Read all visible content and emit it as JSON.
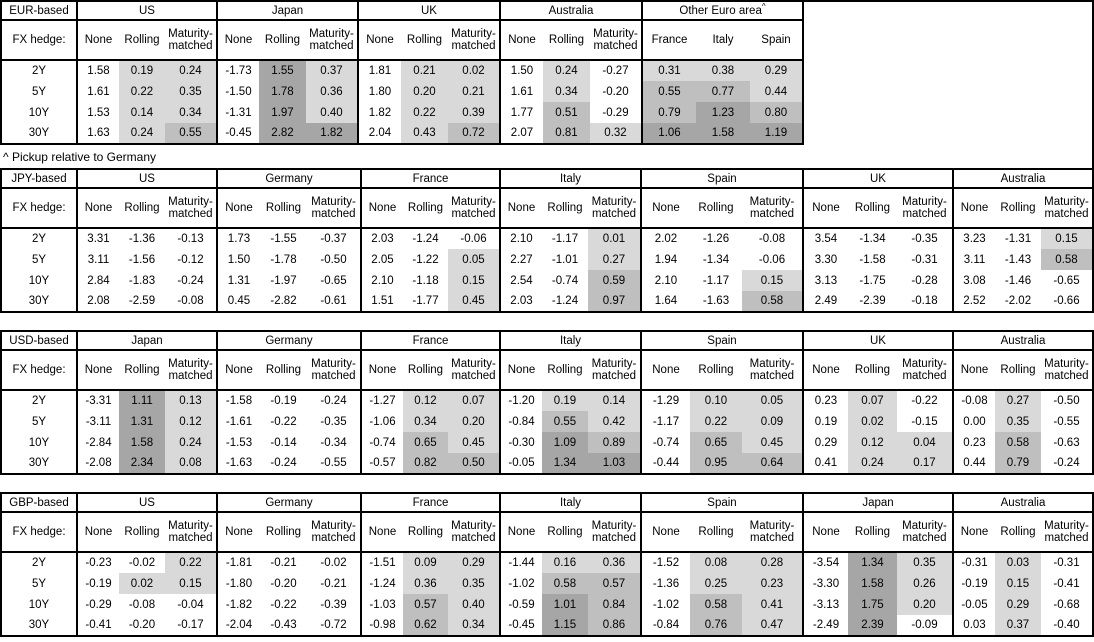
{
  "note": "^ Pickup relative to Germany",
  "colors": {
    "cell_light": "#d9d9d9",
    "cell_medium": "#bfbfbf",
    "cell_dark": "#a6a6a6",
    "border": "#000000"
  },
  "shading_rule": {
    "description": "hedged columns shaded by value",
    "thresholds": [
      0,
      0.5,
      1.0
    ]
  },
  "tables": [
    {
      "base_label": "EUR-based",
      "fx_hedge_label": "FX hedge:",
      "tenors": [
        "2Y",
        "5Y",
        "10Y",
        "30Y"
      ],
      "groups": [
        {
          "name": "US",
          "cols": [
            "None",
            "Rolling",
            "Maturity-matched"
          ],
          "shaded_cols": [
            false,
            true,
            true
          ],
          "rows": [
            [
              "1.58",
              "0.19",
              "0.24"
            ],
            [
              "1.61",
              "0.22",
              "0.35"
            ],
            [
              "1.53",
              "0.14",
              "0.34"
            ],
            [
              "1.63",
              "0.24",
              "0.55"
            ]
          ]
        },
        {
          "name": "Japan",
          "cols": [
            "None",
            "Rolling",
            "Maturity-matched"
          ],
          "shaded_cols": [
            false,
            true,
            true
          ],
          "rows": [
            [
              "-1.73",
              "1.55",
              "0.37"
            ],
            [
              "-1.50",
              "1.78",
              "0.36"
            ],
            [
              "-1.31",
              "1.97",
              "0.40"
            ],
            [
              "-0.45",
              "2.82",
              "1.82"
            ]
          ]
        },
        {
          "name": "UK",
          "cols": [
            "None",
            "Rolling",
            "Maturity-matched"
          ],
          "shaded_cols": [
            false,
            true,
            true
          ],
          "rows": [
            [
              "1.81",
              "0.21",
              "0.02"
            ],
            [
              "1.80",
              "0.20",
              "0.21"
            ],
            [
              "1.82",
              "0.22",
              "0.39"
            ],
            [
              "2.04",
              "0.43",
              "0.72"
            ]
          ]
        },
        {
          "name": "Australia",
          "cols": [
            "None",
            "Rolling",
            "Maturity-matched"
          ],
          "shaded_cols": [
            false,
            true,
            true
          ],
          "rows": [
            [
              "1.50",
              "0.24",
              "-0.27"
            ],
            [
              "1.61",
              "0.34",
              "-0.20"
            ],
            [
              "1.77",
              "0.51",
              "-0.29"
            ],
            [
              "2.07",
              "0.81",
              "0.32"
            ]
          ]
        },
        {
          "name": "Other Euro area",
          "sup": "^",
          "cols": [
            "France",
            "Italy",
            "Spain"
          ],
          "shaded_cols": [
            true,
            true,
            true
          ],
          "rows": [
            [
              "0.31",
              "0.38",
              "0.29"
            ],
            [
              "0.55",
              "0.77",
              "0.44"
            ],
            [
              "0.79",
              "1.23",
              "0.80"
            ],
            [
              "1.06",
              "1.58",
              "1.19"
            ]
          ]
        }
      ]
    },
    {
      "base_label": "JPY-based",
      "fx_hedge_label": "FX hedge:",
      "tenors": [
        "2Y",
        "5Y",
        "10Y",
        "30Y"
      ],
      "groups": [
        {
          "name": "US",
          "cols": [
            "None",
            "Rolling",
            "Maturity-matched"
          ],
          "shaded_cols": [
            false,
            true,
            true
          ],
          "rows": [
            [
              "3.31",
              "-1.36",
              "-0.13"
            ],
            [
              "3.11",
              "-1.56",
              "-0.12"
            ],
            [
              "2.84",
              "-1.83",
              "-0.24"
            ],
            [
              "2.08",
              "-2.59",
              "-0.08"
            ]
          ]
        },
        {
          "name": "Germany",
          "cols": [
            "None",
            "Rolling",
            "Maturity-matched"
          ],
          "shaded_cols": [
            false,
            true,
            true
          ],
          "rows": [
            [
              "1.73",
              "-1.55",
              "-0.37"
            ],
            [
              "1.50",
              "-1.78",
              "-0.50"
            ],
            [
              "1.31",
              "-1.97",
              "-0.65"
            ],
            [
              "0.45",
              "-2.82",
              "-0.61"
            ]
          ]
        },
        {
          "name": "France",
          "cols": [
            "None",
            "Rolling",
            "Maturity-matched"
          ],
          "shaded_cols": [
            false,
            true,
            true
          ],
          "rows": [
            [
              "2.03",
              "-1.24",
              "-0.06"
            ],
            [
              "2.05",
              "-1.22",
              "0.05"
            ],
            [
              "2.10",
              "-1.18",
              "0.15"
            ],
            [
              "1.51",
              "-1.77",
              "0.45"
            ]
          ]
        },
        {
          "name": "Italy",
          "cols": [
            "None",
            "Rolling",
            "Maturity-matched"
          ],
          "shaded_cols": [
            false,
            true,
            true
          ],
          "rows": [
            [
              "2.10",
              "-1.17",
              "0.01"
            ],
            [
              "2.27",
              "-1.01",
              "0.27"
            ],
            [
              "2.54",
              "-0.74",
              "0.59"
            ],
            [
              "2.03",
              "-1.24",
              "0.97"
            ]
          ]
        },
        {
          "name": "Spain",
          "cols": [
            "None",
            "Rolling",
            "Maturity-matched"
          ],
          "shaded_cols": [
            false,
            true,
            true
          ],
          "rows": [
            [
              "2.02",
              "-1.26",
              "-0.08"
            ],
            [
              "1.94",
              "-1.34",
              "-0.06"
            ],
            [
              "2.10",
              "-1.17",
              "0.15"
            ],
            [
              "1.64",
              "-1.63",
              "0.58"
            ]
          ]
        },
        {
          "name": "UK",
          "cols": [
            "None",
            "Rolling",
            "Maturity-matched"
          ],
          "shaded_cols": [
            false,
            true,
            true
          ],
          "rows": [
            [
              "3.54",
              "-1.34",
              "-0.35"
            ],
            [
              "3.30",
              "-1.58",
              "-0.31"
            ],
            [
              "3.13",
              "-1.75",
              "-0.28"
            ],
            [
              "2.49",
              "-2.39",
              "-0.18"
            ]
          ]
        },
        {
          "name": "Australia",
          "cols": [
            "None",
            "Rolling",
            "Maturity-matched"
          ],
          "shaded_cols": [
            false,
            true,
            true
          ],
          "rows": [
            [
              "3.23",
              "-1.31",
              "0.15"
            ],
            [
              "3.11",
              "-1.43",
              "0.58"
            ],
            [
              "3.08",
              "-1.46",
              "-0.65"
            ],
            [
              "2.52",
              "-2.02",
              "-0.66"
            ]
          ]
        }
      ]
    },
    {
      "base_label": "USD-based",
      "fx_hedge_label": "FX hedge:",
      "tenors": [
        "2Y",
        "5Y",
        "10Y",
        "30Y"
      ],
      "groups": [
        {
          "name": "Japan",
          "cols": [
            "None",
            "Rolling",
            "Maturity-matched"
          ],
          "shaded_cols": [
            false,
            true,
            true
          ],
          "rows": [
            [
              "-3.31",
              "1.11",
              "0.13"
            ],
            [
              "-3.11",
              "1.31",
              "0.12"
            ],
            [
              "-2.84",
              "1.58",
              "0.24"
            ],
            [
              "-2.08",
              "2.34",
              "0.08"
            ]
          ]
        },
        {
          "name": "Germany",
          "cols": [
            "None",
            "Rolling",
            "Maturity-matched"
          ],
          "shaded_cols": [
            false,
            true,
            true
          ],
          "rows": [
            [
              "-1.58",
              "-0.19",
              "-0.24"
            ],
            [
              "-1.61",
              "-0.22",
              "-0.35"
            ],
            [
              "-1.53",
              "-0.14",
              "-0.34"
            ],
            [
              "-1.63",
              "-0.24",
              "-0.55"
            ]
          ]
        },
        {
          "name": "France",
          "cols": [
            "None",
            "Rolling",
            "Maturity-matched"
          ],
          "shaded_cols": [
            false,
            true,
            true
          ],
          "rows": [
            [
              "-1.27",
              "0.12",
              "0.07"
            ],
            [
              "-1.06",
              "0.34",
              "0.20"
            ],
            [
              "-0.74",
              "0.65",
              "0.45"
            ],
            [
              "-0.57",
              "0.82",
              "0.50"
            ]
          ]
        },
        {
          "name": "Italy",
          "cols": [
            "None",
            "Rolling",
            "Maturity-matched"
          ],
          "shaded_cols": [
            false,
            true,
            true
          ],
          "rows": [
            [
              "-1.20",
              "0.19",
              "0.14"
            ],
            [
              "-0.84",
              "0.55",
              "0.42"
            ],
            [
              "-0.30",
              "1.09",
              "0.89"
            ],
            [
              "-0.05",
              "1.34",
              "1.03"
            ]
          ]
        },
        {
          "name": "Spain",
          "cols": [
            "None",
            "Rolling",
            "Maturity-matched"
          ],
          "shaded_cols": [
            false,
            true,
            true
          ],
          "rows": [
            [
              "-1.29",
              "0.10",
              "0.05"
            ],
            [
              "-1.17",
              "0.22",
              "0.09"
            ],
            [
              "-0.74",
              "0.65",
              "0.45"
            ],
            [
              "-0.44",
              "0.95",
              "0.64"
            ]
          ]
        },
        {
          "name": "UK",
          "cols": [
            "None",
            "Rolling",
            "Maturity-matched"
          ],
          "shaded_cols": [
            false,
            true,
            true
          ],
          "rows": [
            [
              "0.23",
              "0.07",
              "-0.22"
            ],
            [
              "0.19",
              "0.02",
              "-0.15"
            ],
            [
              "0.29",
              "0.12",
              "0.04"
            ],
            [
              "0.41",
              "0.24",
              "0.17"
            ]
          ]
        },
        {
          "name": "Australia",
          "cols": [
            "None",
            "Rolling",
            "Maturity-matched"
          ],
          "shaded_cols": [
            false,
            true,
            true
          ],
          "rows": [
            [
              "-0.08",
              "0.27",
              "-0.50"
            ],
            [
              "0.00",
              "0.35",
              "-0.55"
            ],
            [
              "0.23",
              "0.58",
              "-0.63"
            ],
            [
              "0.44",
              "0.79",
              "-0.24"
            ]
          ]
        }
      ]
    },
    {
      "base_label": "GBP-based",
      "fx_hedge_label": "FX hedge:",
      "tenors": [
        "2Y",
        "5Y",
        "10Y",
        "30Y"
      ],
      "groups": [
        {
          "name": "US",
          "cols": [
            "None",
            "Rolling",
            "Maturity-matched"
          ],
          "shaded_cols": [
            false,
            true,
            true
          ],
          "rows": [
            [
              "-0.23",
              "-0.02",
              "0.22"
            ],
            [
              "-0.19",
              "0.02",
              "0.15"
            ],
            [
              "-0.29",
              "-0.08",
              "-0.04"
            ],
            [
              "-0.41",
              "-0.20",
              "-0.17"
            ]
          ]
        },
        {
          "name": "Germany",
          "cols": [
            "None",
            "Rolling",
            "Maturity-matched"
          ],
          "shaded_cols": [
            false,
            true,
            true
          ],
          "rows": [
            [
              "-1.81",
              "-0.21",
              "-0.02"
            ],
            [
              "-1.80",
              "-0.20",
              "-0.21"
            ],
            [
              "-1.82",
              "-0.22",
              "-0.39"
            ],
            [
              "-2.04",
              "-0.43",
              "-0.72"
            ]
          ]
        },
        {
          "name": "France",
          "cols": [
            "None",
            "Rolling",
            "Maturity-matched"
          ],
          "shaded_cols": [
            false,
            true,
            true
          ],
          "rows": [
            [
              "-1.51",
              "0.09",
              "0.29"
            ],
            [
              "-1.24",
              "0.36",
              "0.35"
            ],
            [
              "-1.03",
              "0.57",
              "0.40"
            ],
            [
              "-0.98",
              "0.62",
              "0.34"
            ]
          ]
        },
        {
          "name": "Italy",
          "cols": [
            "None",
            "Rolling",
            "Maturity-matched"
          ],
          "shaded_cols": [
            false,
            true,
            true
          ],
          "rows": [
            [
              "-1.44",
              "0.16",
              "0.36"
            ],
            [
              "-1.02",
              "0.58",
              "0.57"
            ],
            [
              "-0.59",
              "1.01",
              "0.84"
            ],
            [
              "-0.45",
              "1.15",
              "0.86"
            ]
          ]
        },
        {
          "name": "Spain",
          "cols": [
            "None",
            "Rolling",
            "Maturity-matched"
          ],
          "shaded_cols": [
            false,
            true,
            true
          ],
          "rows": [
            [
              "-1.52",
              "0.08",
              "0.28"
            ],
            [
              "-1.36",
              "0.25",
              "0.23"
            ],
            [
              "-1.02",
              "0.58",
              "0.41"
            ],
            [
              "-0.84",
              "0.76",
              "0.47"
            ]
          ]
        },
        {
          "name": "Japan",
          "cols": [
            "None",
            "Rolling",
            "Maturity-matched"
          ],
          "shaded_cols": [
            false,
            true,
            true
          ],
          "rows": [
            [
              "-3.54",
              "1.34",
              "0.35"
            ],
            [
              "-3.30",
              "1.58",
              "0.26"
            ],
            [
              "-3.13",
              "1.75",
              "0.20"
            ],
            [
              "-2.49",
              "2.39",
              "-0.09"
            ]
          ]
        },
        {
          "name": "Australia",
          "cols": [
            "None",
            "Rolling",
            "Maturity-matched"
          ],
          "shaded_cols": [
            false,
            true,
            true
          ],
          "rows": [
            [
              "-0.31",
              "0.03",
              "-0.31"
            ],
            [
              "-0.19",
              "0.15",
              "-0.41"
            ],
            [
              "-0.05",
              "0.29",
              "-0.68"
            ],
            [
              "0.03",
              "0.37",
              "-0.40"
            ]
          ]
        }
      ]
    }
  ]
}
